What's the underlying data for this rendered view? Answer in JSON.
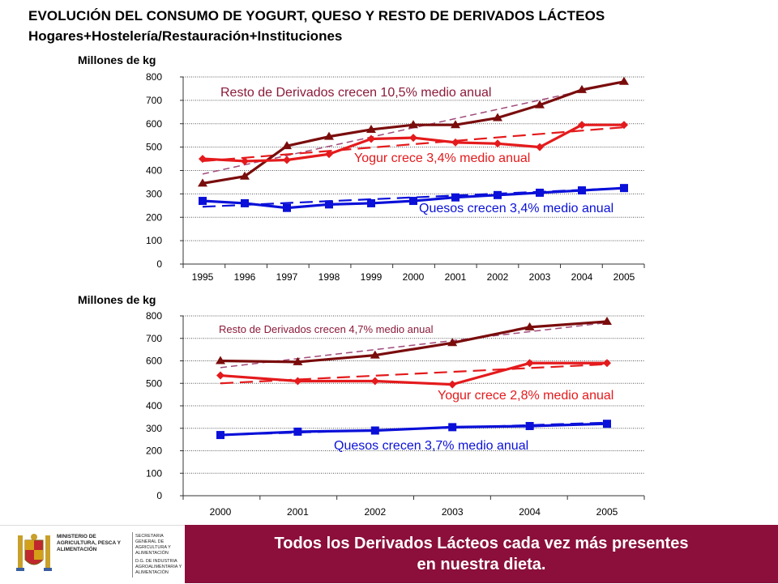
{
  "header": {
    "title": "EVOLUCIÓN DEL CONSUMO DE YOGURT, QUESO Y RESTO DE DERIVADOS LÁCTEOS",
    "subtitle": "Hogares+Hostelería/Restauración+Instituciones"
  },
  "chart_data": [
    {
      "type": "line",
      "ylabel": "Millones de kg",
      "ylim": [
        0,
        800
      ],
      "yticks": [
        0,
        100,
        200,
        300,
        400,
        500,
        600,
        700,
        800
      ],
      "categories": [
        "1995",
        "1996",
        "1997",
        "1998",
        "1999",
        "2000",
        "2001",
        "2002",
        "2003",
        "2004",
        "2005"
      ],
      "series": [
        {
          "name": "Resto de Derivados",
          "color": "#7a0c0c",
          "marker": "triangle",
          "values": [
            345,
            375,
            505,
            545,
            575,
            595,
            595,
            625,
            680,
            745,
            780
          ]
        },
        {
          "name": "Yogur",
          "color": "#e41a1c",
          "marker": "diamond",
          "values": [
            450,
            440,
            445,
            470,
            535,
            540,
            520,
            515,
            500,
            595,
            595
          ]
        },
        {
          "name": "Quesos",
          "color": "#0a10d8",
          "marker": "square",
          "values": [
            270,
            260,
            240,
            255,
            260,
            270,
            285,
            295,
            305,
            315,
            325
          ]
        }
      ],
      "trends": [
        {
          "series": "Resto de Derivados",
          "color": "#a04a7a",
          "from": 385,
          "to": 780
        },
        {
          "series": "Yogur",
          "color": "#e41a1c",
          "from": 440,
          "to": 585
        },
        {
          "series": "Quesos",
          "color": "#0a10d8",
          "from": 245,
          "to": 325
        }
      ],
      "annotations": [
        {
          "text": "Resto de Derivados crecen 10,5% medio anual",
          "color": "#8b1a3a"
        },
        {
          "text": "Yogur crece 3,4% medio anual",
          "color": "#e41a1c"
        },
        {
          "text": "Quesos crecen 3,4% medio anual",
          "color": "#0a10d8"
        }
      ]
    },
    {
      "type": "line",
      "ylabel": "Millones de kg",
      "ylim": [
        0,
        800
      ],
      "yticks": [
        0,
        100,
        200,
        300,
        400,
        500,
        600,
        700,
        800
      ],
      "categories": [
        "2000",
        "2001",
        "2002",
        "2003",
        "2004",
        "2005"
      ],
      "series": [
        {
          "name": "Resto de Derivados",
          "color": "#7a0c0c",
          "marker": "triangle",
          "values": [
            600,
            595,
            625,
            680,
            750,
            775
          ]
        },
        {
          "name": "Yogur",
          "color": "#e41a1c",
          "marker": "diamond",
          "values": [
            535,
            510,
            510,
            495,
            590,
            590
          ]
        },
        {
          "name": "Quesos",
          "color": "#0a10d8",
          "marker": "square",
          "values": [
            270,
            285,
            290,
            305,
            310,
            320
          ]
        }
      ],
      "trends": [
        {
          "series": "Resto de Derivados",
          "color": "#a04a7a",
          "from": 570,
          "to": 770
        },
        {
          "series": "Yogur",
          "color": "#e41a1c",
          "from": 500,
          "to": 585
        },
        {
          "series": "Quesos",
          "color": "#0a10d8",
          "from": 270,
          "to": 325
        }
      ],
      "annotations": [
        {
          "text": "Resto de Derivados crecen 4,7% medio anual",
          "color": "#8b1a3a"
        },
        {
          "text": "Yogur crece 2,8% medio anual",
          "color": "#e41a1c"
        },
        {
          "text": "Quesos crecen 3,7% medio anual",
          "color": "#0a10d8"
        }
      ]
    }
  ],
  "footer": {
    "banner_line1": "Todos los Derivados Lácteos cada vez más presentes",
    "banner_line2": "en nuestra dieta.",
    "logo_ministry": "MINISTERIO DE AGRICULTURA, PESCA Y ALIMENTACIÓN",
    "logo_secretaria": "SECRETARIA GENERAL DE AGRICULTURA Y ALIMENTACIÓN",
    "logo_dg": "D.G. DE INDUSTRIA AGROALIMENTARIA Y ALIMENTACIÓN"
  }
}
